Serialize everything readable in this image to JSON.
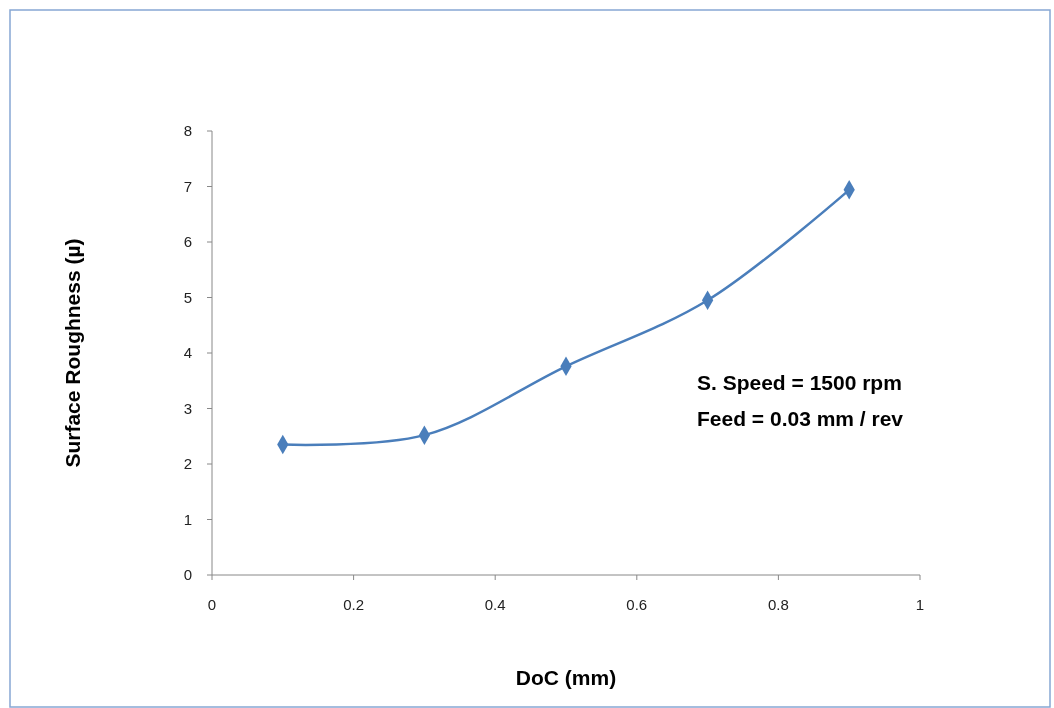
{
  "chart_data": {
    "type": "line",
    "xlabel": "DoC (mm)",
    "ylabel": "Surface Roughness (µ)",
    "x": [
      0.1,
      0.3,
      0.5,
      0.7,
      0.9
    ],
    "series": [
      {
        "color": "#4a7ebb",
        "values": [
          2.35,
          2.52,
          3.76,
          4.95,
          6.94
        ]
      }
    ],
    "xlim": [
      0,
      1
    ],
    "xticks": [
      0,
      0.2,
      0.4,
      0.6,
      0.8,
      1
    ],
    "ylim": [
      0,
      8
    ],
    "yticks": [
      0,
      1,
      2,
      3,
      4,
      5,
      6,
      7,
      8
    ],
    "marker": "diamond",
    "annotations": [
      "S. Speed = 1500 rpm",
      "Feed = 0.03 mm / rev"
    ]
  }
}
